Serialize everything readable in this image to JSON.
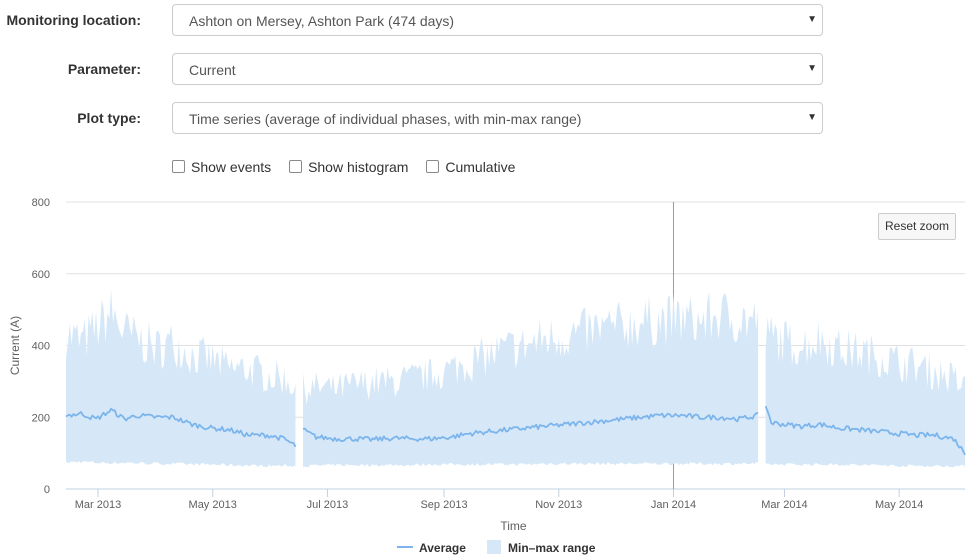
{
  "form": {
    "location_label": "Monitoring location:",
    "location_value": "Ashton on Mersey, Ashton Park (474 days)",
    "parameter_label": "Parameter:",
    "parameter_value": "Current",
    "plottype_label": "Plot type:",
    "plottype_value": "Time series (average of individual phases, with min-max range)",
    "caret_icon": "▼",
    "checkboxes": [
      {
        "label": "Show events",
        "checked": false
      },
      {
        "label": "Show histogram",
        "checked": false
      },
      {
        "label": "Cumulative",
        "checked": false
      }
    ]
  },
  "reset_zoom_label": "Reset zoom",
  "colors": {
    "average": "#7cb5ec",
    "range": "#d6e8f8",
    "grid": "#e0e0e0",
    "axis_text": "#606060"
  },
  "chart_data": {
    "type": "area",
    "title": "",
    "xlabel": "Time",
    "ylabel": "Current (A)",
    "ylim": [
      0,
      800
    ],
    "xlim": [
      "2013-02-12",
      "2014-06-05"
    ],
    "yticks": [
      0,
      200,
      400,
      600,
      800
    ],
    "xticks": [
      {
        "date": "2013-03-01",
        "label": "Mar 2013"
      },
      {
        "date": "2013-05-01",
        "label": "May 2013"
      },
      {
        "date": "2013-07-01",
        "label": "Jul 2013"
      },
      {
        "date": "2013-09-01",
        "label": "Sep 2013"
      },
      {
        "date": "2013-11-01",
        "label": "Nov 2013"
      },
      {
        "date": "2014-01-01",
        "label": "Jan 2014"
      },
      {
        "date": "2014-03-01",
        "label": "Mar 2014"
      },
      {
        "date": "2014-05-01",
        "label": "May 2014"
      }
    ],
    "crosshair_date": "2014-01-01",
    "legend": [
      {
        "name": "Average",
        "kind": "line"
      },
      {
        "name": "Min–max range",
        "kind": "area"
      }
    ],
    "legend_position": "bottom-center",
    "series": [
      {
        "name": "Average",
        "segments": [
          {
            "x": [
              "2013-02-12",
              "2013-02-20",
              "2013-02-28",
              "2013-03-08",
              "2013-03-15",
              "2013-03-22",
              "2013-04-01",
              "2013-04-10",
              "2013-04-20",
              "2013-04-30",
              "2013-05-10",
              "2013-05-20",
              "2013-05-30",
              "2013-06-08",
              "2013-06-14"
            ],
            "y": [
              205,
              210,
              195,
              220,
              195,
              205,
              200,
              200,
              180,
              170,
              165,
              150,
              150,
              140,
              120
            ]
          },
          {
            "x": [
              "2013-06-18",
              "2013-06-25",
              "2013-07-05",
              "2013-07-15",
              "2013-07-25",
              "2013-08-05",
              "2013-08-15",
              "2013-08-25",
              "2013-09-05",
              "2013-09-15",
              "2013-09-25",
              "2013-10-05",
              "2013-10-15",
              "2013-10-25",
              "2013-11-05",
              "2013-11-15",
              "2013-11-25",
              "2013-12-05",
              "2013-12-15",
              "2013-12-25",
              "2014-01-05",
              "2014-01-15",
              "2014-01-25",
              "2014-02-05",
              "2014-02-15"
            ],
            "y": [
              165,
              145,
              140,
              140,
              138,
              142,
              140,
              140,
              145,
              155,
              160,
              165,
              170,
              175,
              180,
              185,
              190,
              195,
              200,
              205,
              205,
              200,
              200,
              195,
              205
            ]
          },
          {
            "x": [
              "2014-02-19",
              "2014-02-22",
              "2014-03-01",
              "2014-03-10",
              "2014-03-20",
              "2014-03-30",
              "2014-04-10",
              "2014-04-20",
              "2014-04-30",
              "2014-05-10",
              "2014-05-20",
              "2014-05-30",
              "2014-06-05"
            ],
            "y": [
              235,
              185,
              180,
              175,
              180,
              170,
              165,
              160,
              155,
              150,
              150,
              140,
              100
            ]
          }
        ]
      },
      {
        "name": "Min–max range",
        "segments": [
          {
            "x": [
              "2013-02-12",
              "2013-02-20",
              "2013-02-28",
              "2013-03-08",
              "2013-03-15",
              "2013-03-22",
              "2013-04-01",
              "2013-04-10",
              "2013-04-20",
              "2013-04-30",
              "2013-05-10",
              "2013-05-20",
              "2013-05-30",
              "2013-06-08",
              "2013-06-14"
            ],
            "low": [
              75,
              78,
              75,
              74,
              75,
              74,
              72,
              72,
              70,
              70,
              68,
              67,
              66,
              66,
              65
            ],
            "high": [
              470,
              440,
              480,
              530,
              470,
              450,
              420,
              440,
              400,
              390,
              360,
              360,
              340,
              330,
              310
            ]
          },
          {
            "x": [
              "2013-06-18",
              "2013-06-25",
              "2013-07-05",
              "2013-07-15",
              "2013-07-25",
              "2013-08-05",
              "2013-08-15",
              "2013-08-25",
              "2013-09-05",
              "2013-09-15",
              "2013-09-25",
              "2013-10-05",
              "2013-10-15",
              "2013-10-25",
              "2013-11-05",
              "2013-11-15",
              "2013-11-25",
              "2013-12-05",
              "2013-12-15",
              "2013-12-25",
              "2014-01-05",
              "2014-01-15",
              "2014-01-25",
              "2014-02-05",
              "2014-02-15"
            ],
            "low": [
              65,
              67,
              68,
              68,
              68,
              68,
              68,
              70,
              70,
              70,
              70,
              70,
              70,
              72,
              72,
              72,
              72,
              72,
              72,
              72,
              72,
              72,
              72,
              72,
              72
            ],
            "high": [
              300,
              305,
              300,
              310,
              320,
              320,
              330,
              340,
              360,
              380,
              400,
              420,
              430,
              450,
              460,
              470,
              480,
              490,
              500,
              505,
              510,
              500,
              520,
              510,
              500
            ]
          },
          {
            "x": [
              "2014-02-19",
              "2014-02-22",
              "2014-03-01",
              "2014-03-10",
              "2014-03-20",
              "2014-03-30",
              "2014-04-10",
              "2014-04-20",
              "2014-04-30",
              "2014-05-10",
              "2014-05-20",
              "2014-05-30",
              "2014-06-05"
            ],
            "low": [
              70,
              70,
              70,
              70,
              70,
              70,
              68,
              68,
              66,
              66,
              65,
              65,
              65
            ],
            "high": [
              450,
              460,
              440,
              430,
              450,
              420,
              410,
              400,
              380,
              370,
              350,
              330,
              300
            ]
          }
        ]
      }
    ]
  }
}
